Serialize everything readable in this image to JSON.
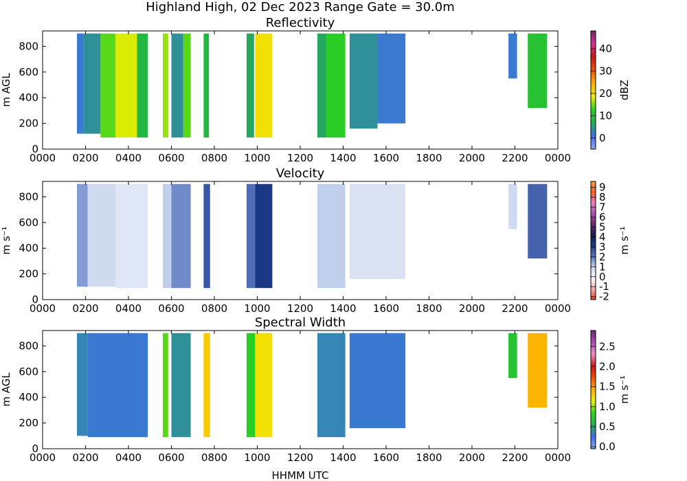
{
  "figure": {
    "suptitle": "Highland High, 02 Dec 2023 Range Gate = 30.0m",
    "xlabel": "HHMM UTC"
  },
  "chart_data": [
    {
      "type": "heatmap",
      "title": "Reflectivity",
      "ylabel": "m AGL",
      "cbar_label": "dBZ",
      "cbar_ticks": [
        "0",
        "10",
        "20",
        "30",
        "40"
      ],
      "cbar_tick_values": [
        0,
        10,
        20,
        30,
        40
      ],
      "cbar_range": [
        -5,
        48
      ],
      "cbar_colors": [
        "#8aa8f2",
        "#3f6df0",
        "#22b04a",
        "#2bd11f",
        "#ecef00",
        "#ffb000",
        "#f05000",
        "#c81818",
        "#d63090",
        "#6a2a6a"
      ],
      "xticks": [
        "0000",
        "0200",
        "0400",
        "0600",
        "0800",
        "1000",
        "1200",
        "1400",
        "1600",
        "1800",
        "2000",
        "2200",
        "0000"
      ],
      "yticks": [
        "0",
        "200",
        "400",
        "600",
        "800"
      ],
      "ylim": [
        0,
        920
      ],
      "xlim_hours": [
        0,
        24
      ],
      "echo_bands": [
        {
          "start": 1.6,
          "end": 1.9,
          "bottom": 120,
          "top": 900,
          "value": 2
        },
        {
          "start": 1.9,
          "end": 2.7,
          "bottom": 120,
          "top": 900,
          "value": 4
        },
        {
          "start": 2.7,
          "end": 3.4,
          "bottom": 90,
          "top": 900,
          "value": 14
        },
        {
          "start": 3.4,
          "end": 4.4,
          "bottom": 90,
          "top": 900,
          "value": 18
        },
        {
          "start": 4.4,
          "end": 4.9,
          "bottom": 90,
          "top": 900,
          "value": 8
        },
        {
          "start": 5.6,
          "end": 5.85,
          "bottom": 90,
          "top": 900,
          "value": 16
        },
        {
          "start": 6.0,
          "end": 6.55,
          "bottom": 90,
          "top": 900,
          "value": 4
        },
        {
          "start": 6.55,
          "end": 6.9,
          "bottom": 90,
          "top": 900,
          "value": 14
        },
        {
          "start": 7.5,
          "end": 7.75,
          "bottom": 90,
          "top": 900,
          "value": 8
        },
        {
          "start": 9.5,
          "end": 9.85,
          "bottom": 90,
          "top": 900,
          "value": 6
        },
        {
          "start": 9.9,
          "end": 10.7,
          "bottom": 90,
          "top": 900,
          "value": 20
        },
        {
          "start": 12.8,
          "end": 13.2,
          "bottom": 90,
          "top": 900,
          "value": 6
        },
        {
          "start": 13.2,
          "end": 14.1,
          "bottom": 90,
          "top": 900,
          "value": 12
        },
        {
          "start": 14.3,
          "end": 15.6,
          "bottom": 160,
          "top": 900,
          "value": 4
        },
        {
          "start": 15.6,
          "end": 16.9,
          "bottom": 200,
          "top": 900,
          "value": 2
        },
        {
          "start": 21.7,
          "end": 22.1,
          "bottom": 550,
          "top": 900,
          "value": 2
        },
        {
          "start": 22.6,
          "end": 23.5,
          "bottom": 320,
          "top": 900,
          "value": 10
        }
      ]
    },
    {
      "type": "heatmap",
      "title": "Velocity",
      "ylabel": "m s⁻¹",
      "cbar_label": "m s⁻¹",
      "cbar_ticks": [
        "-2",
        "-1",
        "0",
        "1",
        "2",
        "3",
        "4",
        "5",
        "6",
        "7",
        "8",
        "9"
      ],
      "cbar_tick_values": [
        -2,
        -1,
        0,
        1,
        2,
        3,
        4,
        5,
        6,
        7,
        8,
        9
      ],
      "cbar_range": [
        -2.3,
        9.6
      ],
      "cbar_colors": [
        "#e04020",
        "#f4b0b0",
        "#ffffff",
        "#c8d4ee",
        "#5a78c0",
        "#1c3a8a",
        "#1a1a50",
        "#6a2a6a",
        "#b04ab8",
        "#f07ac0",
        "#f06020",
        "#f4a050"
      ],
      "xticks": [
        "0000",
        "0200",
        "0400",
        "0600",
        "0800",
        "1000",
        "1200",
        "1400",
        "1600",
        "1800",
        "2000",
        "2200",
        "0000"
      ],
      "yticks": [
        "0",
        "200",
        "400",
        "600",
        "800"
      ],
      "ylim": [
        0,
        920
      ],
      "xlim_hours": [
        0,
        24
      ],
      "echo_bands": [
        {
          "start": 1.6,
          "end": 2.1,
          "bottom": 100,
          "top": 900,
          "value": 1.6
        },
        {
          "start": 2.1,
          "end": 3.4,
          "bottom": 100,
          "top": 900,
          "value": 0.8
        },
        {
          "start": 3.4,
          "end": 4.9,
          "bottom": 90,
          "top": 900,
          "value": 0.5
        },
        {
          "start": 5.6,
          "end": 6.0,
          "bottom": 90,
          "top": 900,
          "value": 1.0
        },
        {
          "start": 6.0,
          "end": 6.9,
          "bottom": 90,
          "top": 900,
          "value": 1.8
        },
        {
          "start": 7.5,
          "end": 7.8,
          "bottom": 90,
          "top": 900,
          "value": 2.6
        },
        {
          "start": 9.5,
          "end": 9.9,
          "bottom": 90,
          "top": 900,
          "value": 2.2
        },
        {
          "start": 9.9,
          "end": 10.7,
          "bottom": 90,
          "top": 900,
          "value": 3.2
        },
        {
          "start": 12.8,
          "end": 14.1,
          "bottom": 90,
          "top": 900,
          "value": 1.0
        },
        {
          "start": 14.3,
          "end": 16.9,
          "bottom": 160,
          "top": 900,
          "value": 0.6
        },
        {
          "start": 21.7,
          "end": 22.1,
          "bottom": 550,
          "top": 900,
          "value": 0.8
        },
        {
          "start": 22.6,
          "end": 23.5,
          "bottom": 320,
          "top": 900,
          "value": 2.4
        }
      ]
    },
    {
      "type": "heatmap",
      "title": "Spectral Width",
      "ylabel": "m AGL",
      "cbar_label": "m s⁻¹",
      "cbar_ticks": [
        "0.0",
        "0.5",
        "1.0",
        "1.5",
        "2.0",
        "2.5"
      ],
      "cbar_tick_values": [
        0.0,
        0.5,
        1.0,
        1.5,
        2.0,
        2.5
      ],
      "cbar_range": [
        -0.05,
        2.9
      ],
      "cbar_colors": [
        "#8aa8f2",
        "#3f6df0",
        "#22b04a",
        "#2bd11f",
        "#ecef00",
        "#ffb000",
        "#f05000",
        "#c81818",
        "#f090c0",
        "#b04ab8",
        "#6a2a6a"
      ],
      "xticks": [
        "0000",
        "0200",
        "0400",
        "0600",
        "0800",
        "1000",
        "1200",
        "1400",
        "1600",
        "1800",
        "2000",
        "2200",
        "0000"
      ],
      "yticks": [
        "0",
        "200",
        "400",
        "600",
        "800"
      ],
      "ylim": [
        0,
        920
      ],
      "xlim_hours": [
        0,
        24
      ],
      "echo_bands": [
        {
          "start": 1.6,
          "end": 2.1,
          "bottom": 100,
          "top": 900,
          "value": 0.35
        },
        {
          "start": 2.1,
          "end": 4.9,
          "bottom": 90,
          "top": 900,
          "value": 0.3
        },
        {
          "start": 5.6,
          "end": 5.85,
          "bottom": 90,
          "top": 900,
          "value": 0.9
        },
        {
          "start": 6.0,
          "end": 6.9,
          "bottom": 90,
          "top": 900,
          "value": 0.4
        },
        {
          "start": 7.5,
          "end": 7.8,
          "bottom": 90,
          "top": 900,
          "value": 1.3
        },
        {
          "start": 9.5,
          "end": 9.9,
          "bottom": 90,
          "top": 900,
          "value": 0.8
        },
        {
          "start": 9.9,
          "end": 10.7,
          "bottom": 90,
          "top": 900,
          "value": 1.2
        },
        {
          "start": 12.8,
          "end": 14.1,
          "bottom": 90,
          "top": 900,
          "value": 0.35
        },
        {
          "start": 14.3,
          "end": 16.9,
          "bottom": 160,
          "top": 900,
          "value": 0.3
        },
        {
          "start": 21.7,
          "end": 22.1,
          "bottom": 550,
          "top": 900,
          "value": 0.7
        },
        {
          "start": 22.6,
          "end": 23.5,
          "bottom": 320,
          "top": 900,
          "value": 1.4
        }
      ]
    }
  ]
}
